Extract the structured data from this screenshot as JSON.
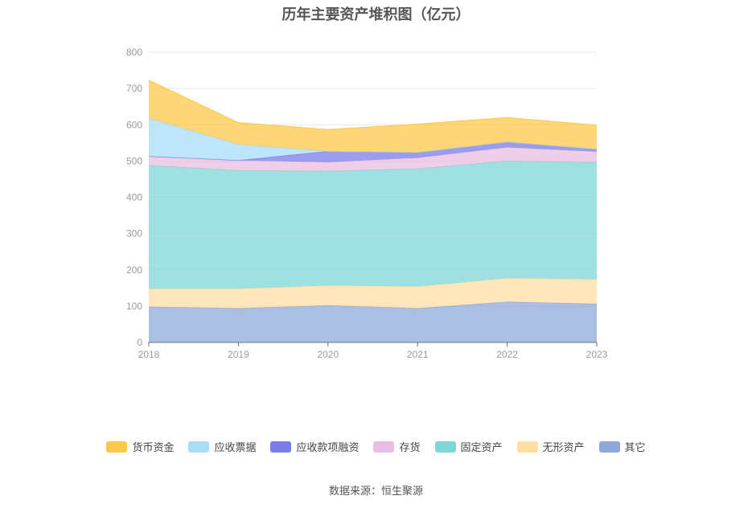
{
  "chart_data": {
    "type": "area",
    "stacked": true,
    "title": "历年主要资产堆积图（亿元）",
    "x": [
      "2018",
      "2019",
      "2020",
      "2021",
      "2022",
      "2023"
    ],
    "ylim": [
      0,
      800
    ],
    "yticks": [
      0,
      100,
      200,
      300,
      400,
      500,
      600,
      700,
      800
    ],
    "grid": true,
    "legend_position": "bottom",
    "series": [
      {
        "name": "其它",
        "color": "#8fa8d9",
        "values": [
          98,
          94,
          102,
          94,
          112,
          106
        ]
      },
      {
        "name": "无形资产",
        "color": "#ffdea4",
        "values": [
          50,
          54,
          55,
          60,
          65,
          68
        ]
      },
      {
        "name": "固定资产",
        "color": "#7fd6d6",
        "values": [
          340,
          326,
          315,
          325,
          323,
          322
        ]
      },
      {
        "name": "存货",
        "color": "#e8bfdf",
        "values": [
          25,
          28,
          25,
          30,
          38,
          30
        ]
      },
      {
        "name": "应收款项融资",
        "color": "#7b7bea",
        "values": [
          0,
          0,
          30,
          15,
          15,
          7
        ]
      },
      {
        "name": "应收票据",
        "color": "#a8dcf7",
        "values": [
          105,
          44,
          0,
          0,
          0,
          0
        ]
      },
      {
        "name": "货币资金",
        "color": "#fcc84a",
        "values": [
          105,
          60,
          60,
          78,
          67,
          66
        ]
      }
    ],
    "legend_order": [
      "货币资金",
      "应收票据",
      "应收款项融资",
      "存货",
      "固定资产",
      "无形资产",
      "其它"
    ]
  },
  "source": "数据来源：恒生聚源"
}
